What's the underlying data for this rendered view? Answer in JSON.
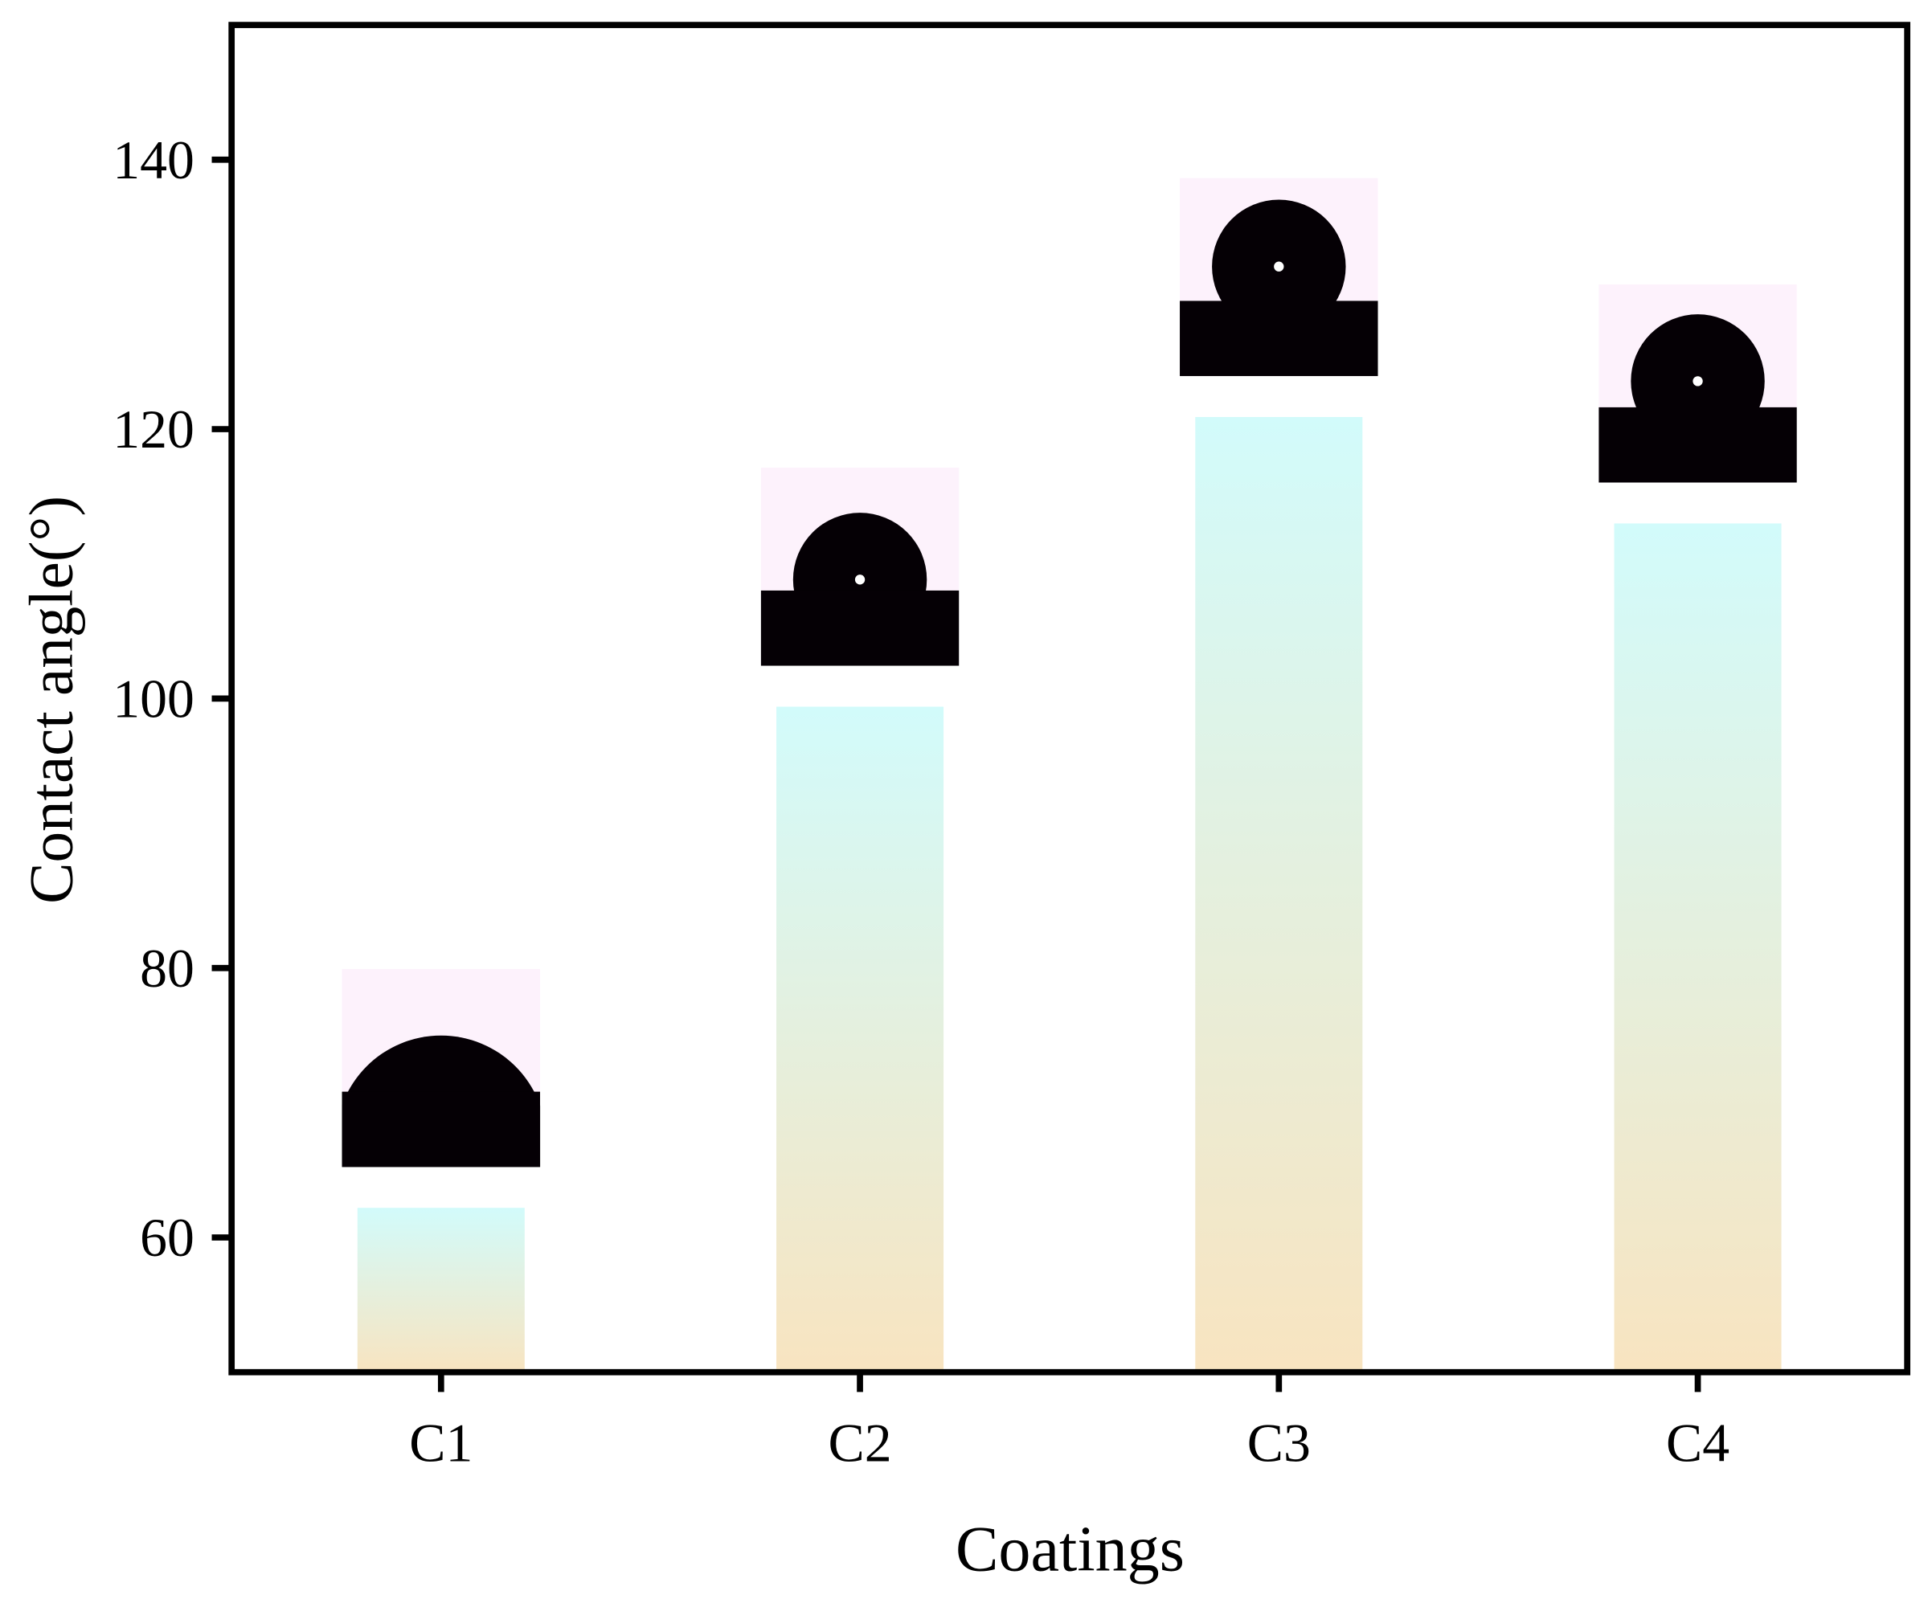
{
  "chart_data": {
    "type": "bar",
    "title": "",
    "xlabel": "Coatings",
    "ylabel": "Contact angle(°)",
    "categories": [
      "C1",
      "C2",
      "C3",
      "C4"
    ],
    "values": [
      62.2,
      99.4,
      120.9,
      113.0
    ],
    "ylim": [
      50,
      150
    ],
    "yticks": [
      60,
      80,
      100,
      120,
      140
    ],
    "grid": false,
    "legend": "none",
    "insets": "droplet contact-angle photo above each bar",
    "colors": {
      "bar_top": "#d2fbfb",
      "bar_bottom": "#f8e4c0",
      "inset_bg": "#fdf2fc",
      "droplet": "#050005"
    }
  }
}
